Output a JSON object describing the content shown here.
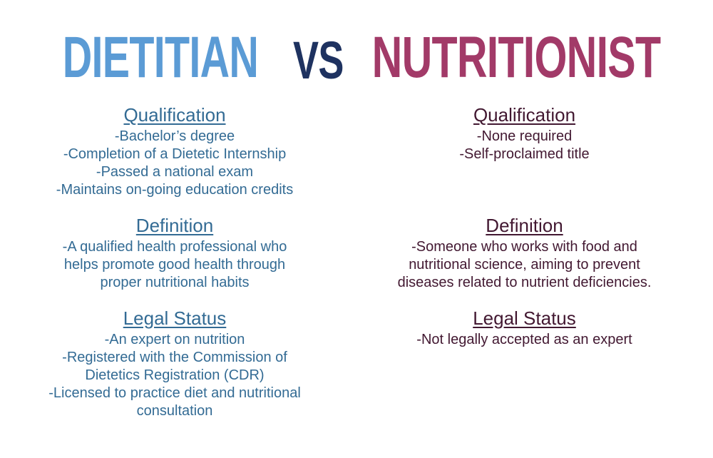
{
  "title": {
    "dietitian": "DIETITIAN",
    "vs": "VS",
    "nutritionist": "NUTRITIONIST"
  },
  "colors": {
    "dietitian_title": "#5B9BD5",
    "vs_title": "#1E3260",
    "nutritionist_title": "#A23A68",
    "dietitian_text": "#336B94",
    "nutritionist_text": "#421831",
    "background": "#FFFFFF"
  },
  "columns": {
    "dietitian": {
      "sections": [
        {
          "heading": "Qualification",
          "items": [
            "-Bachelor’s degree",
            "-Completion of a Dietetic Internship",
            "-Passed a national exam",
            "-Maintains on-going education credits"
          ]
        },
        {
          "heading": "Definition",
          "items": [
            "-A qualified health professional who helps promote good health through proper nutritional habits"
          ]
        },
        {
          "heading": "Legal Status",
          "items": [
            "-An expert on nutrition",
            "-Registered with the Commission of Dietetics Registration (CDR)",
            "-Licensed to practice diet and nutritional consultation"
          ]
        }
      ]
    },
    "nutritionist": {
      "sections": [
        {
          "heading": "Qualification",
          "items": [
            "-None required",
            "-Self-proclaimed title"
          ]
        },
        {
          "heading": "Definition",
          "items": [
            "-Someone who works with food and nutritional science, aiming to prevent diseases related to nutrient deficiencies."
          ]
        },
        {
          "heading": "Legal Status",
          "items": [
            "-Not legally accepted as an expert"
          ]
        }
      ]
    }
  }
}
